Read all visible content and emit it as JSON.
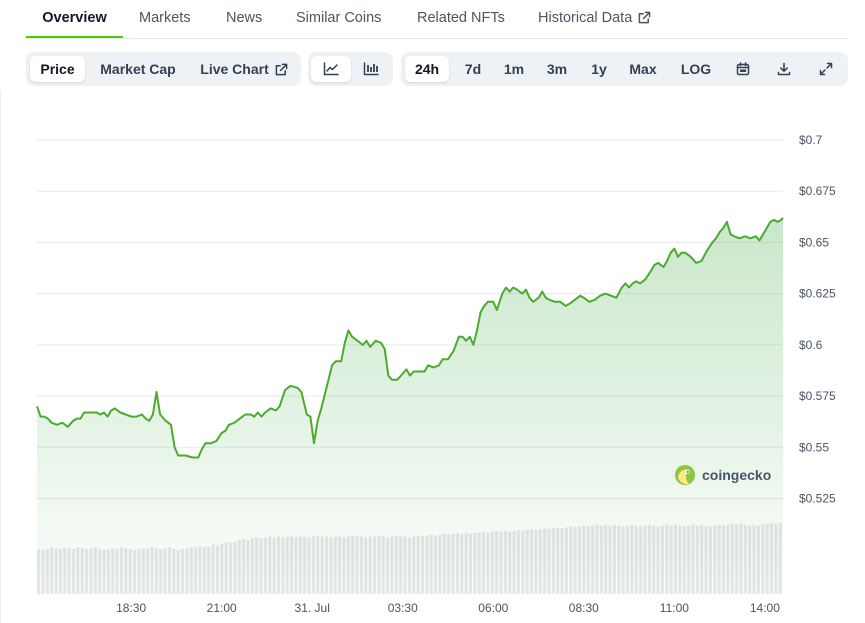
{
  "tabs": [
    {
      "label": "Overview",
      "active": true
    },
    {
      "label": "Markets",
      "active": false
    },
    {
      "label": "News",
      "active": false
    },
    {
      "label": "Similar Coins",
      "active": false
    },
    {
      "label": "Related NFTs",
      "active": false
    },
    {
      "label": "Historical Data",
      "active": false,
      "external": true
    }
  ],
  "toolbar": {
    "price_label": "Price",
    "market_cap_label": "Market Cap",
    "live_chart_label": "Live Chart",
    "chart_types": [
      {
        "icon": "line-chart-icon",
        "selected": true
      },
      {
        "icon": "candlestick-icon",
        "selected": false
      }
    ],
    "ranges": [
      "24h",
      "7d",
      "1m",
      "3m",
      "1y",
      "Max"
    ],
    "selected_range": "24h",
    "log_label": "LOG",
    "icons": [
      "calendar-icon",
      "download-icon",
      "expand-icon"
    ]
  },
  "watermark": {
    "text": "coingecko"
  },
  "colors": {
    "accent": "#4bcc00",
    "line": "#4bab2f",
    "area": "#4caf50",
    "volume": "#e5e7eb",
    "grid": "#e8eaed"
  },
  "chart_data": {
    "type": "area",
    "title": "",
    "xlabel": "",
    "ylabel": "",
    "y_tick_labels": [
      "$0.7",
      "$0.675",
      "$0.65",
      "$0.625",
      "$0.6",
      "$0.575",
      "$0.55",
      "$0.525"
    ],
    "y_ticks": [
      0.7,
      0.675,
      0.65,
      0.625,
      0.6,
      0.575,
      0.55,
      0.525
    ],
    "ylim": [
      0.525,
      0.7
    ],
    "x_tick_labels": [
      "18:30",
      "21:00",
      "31. Jul",
      "03:30",
      "06:00",
      "08:30",
      "11:00",
      "14:00"
    ],
    "x_tick_hours": [
      2.5,
      5,
      7.5,
      10,
      12.5,
      15,
      17.5,
      20
    ],
    "x_unit": "hours after 16:00, 30 Jul",
    "x_range": [
      -0.1,
      20.5
    ],
    "grid": true,
    "series": [
      {
        "points": [
          [
            -0.1,
            0.57
          ],
          [
            0.0,
            0.565
          ],
          [
            0.1,
            0.565
          ],
          [
            0.2,
            0.564
          ],
          [
            0.3,
            0.562
          ],
          [
            0.45,
            0.561
          ],
          [
            0.6,
            0.562
          ],
          [
            0.75,
            0.56
          ],
          [
            0.9,
            0.563
          ],
          [
            1.0,
            0.564
          ],
          [
            1.1,
            0.564
          ],
          [
            1.2,
            0.567
          ],
          [
            1.35,
            0.567
          ],
          [
            1.55,
            0.567
          ],
          [
            1.65,
            0.566
          ],
          [
            1.75,
            0.567
          ],
          [
            1.85,
            0.565
          ],
          [
            1.95,
            0.568
          ],
          [
            2.05,
            0.569
          ],
          [
            2.2,
            0.567
          ],
          [
            2.35,
            0.566
          ],
          [
            2.5,
            0.565
          ],
          [
            2.65,
            0.565
          ],
          [
            2.8,
            0.566
          ],
          [
            2.9,
            0.564
          ],
          [
            3.0,
            0.563
          ],
          [
            3.1,
            0.566
          ],
          [
            3.2,
            0.577
          ],
          [
            3.3,
            0.566
          ],
          [
            3.45,
            0.563
          ],
          [
            3.6,
            0.561
          ],
          [
            3.7,
            0.55
          ],
          [
            3.8,
            0.546
          ],
          [
            4.0,
            0.546
          ],
          [
            4.2,
            0.545
          ],
          [
            4.35,
            0.545
          ],
          [
            4.45,
            0.549
          ],
          [
            4.55,
            0.552
          ],
          [
            4.7,
            0.552
          ],
          [
            4.85,
            0.553
          ],
          [
            5.0,
            0.557
          ],
          [
            5.1,
            0.558
          ],
          [
            5.2,
            0.561
          ],
          [
            5.35,
            0.562
          ],
          [
            5.5,
            0.564
          ],
          [
            5.65,
            0.566
          ],
          [
            5.8,
            0.566
          ],
          [
            5.9,
            0.565
          ],
          [
            6.0,
            0.567
          ],
          [
            6.1,
            0.565
          ],
          [
            6.2,
            0.567
          ],
          [
            6.35,
            0.569
          ],
          [
            6.5,
            0.568
          ],
          [
            6.6,
            0.57
          ],
          [
            6.75,
            0.578
          ],
          [
            6.9,
            0.58
          ],
          [
            7.1,
            0.579
          ],
          [
            7.2,
            0.577
          ],
          [
            7.35,
            0.566
          ],
          [
            7.45,
            0.565
          ],
          [
            7.55,
            0.552
          ],
          [
            7.65,
            0.563
          ],
          [
            7.75,
            0.569
          ],
          [
            7.85,
            0.576
          ],
          [
            7.95,
            0.583
          ],
          [
            8.05,
            0.59
          ],
          [
            8.15,
            0.592
          ],
          [
            8.3,
            0.592
          ],
          [
            8.4,
            0.601
          ],
          [
            8.5,
            0.607
          ],
          [
            8.6,
            0.604
          ],
          [
            8.75,
            0.602
          ],
          [
            8.9,
            0.6
          ],
          [
            9.0,
            0.602
          ],
          [
            9.1,
            0.599
          ],
          [
            9.25,
            0.602
          ],
          [
            9.4,
            0.601
          ],
          [
            9.5,
            0.598
          ],
          [
            9.6,
            0.585
          ],
          [
            9.7,
            0.583
          ],
          [
            9.85,
            0.583
          ],
          [
            10.0,
            0.586
          ],
          [
            10.1,
            0.588
          ],
          [
            10.2,
            0.585
          ],
          [
            10.3,
            0.587
          ],
          [
            10.45,
            0.587
          ],
          [
            10.6,
            0.587
          ],
          [
            10.7,
            0.59
          ],
          [
            10.85,
            0.589
          ],
          [
            11.0,
            0.59
          ],
          [
            11.1,
            0.593
          ],
          [
            11.25,
            0.593
          ],
          [
            11.4,
            0.597
          ],
          [
            11.55,
            0.604
          ],
          [
            11.65,
            0.604
          ],
          [
            11.75,
            0.602
          ],
          [
            11.85,
            0.604
          ],
          [
            11.95,
            0.6
          ],
          [
            12.05,
            0.607
          ],
          [
            12.15,
            0.616
          ],
          [
            12.25,
            0.619
          ],
          [
            12.35,
            0.621
          ],
          [
            12.5,
            0.621
          ],
          [
            12.6,
            0.617
          ],
          [
            12.75,
            0.625
          ],
          [
            12.85,
            0.628
          ],
          [
            12.95,
            0.626
          ],
          [
            13.05,
            0.628
          ],
          [
            13.15,
            0.627
          ],
          [
            13.3,
            0.625
          ],
          [
            13.4,
            0.627
          ],
          [
            13.5,
            0.623
          ],
          [
            13.6,
            0.621
          ],
          [
            13.75,
            0.623
          ],
          [
            13.85,
            0.626
          ],
          [
            13.95,
            0.623
          ],
          [
            14.05,
            0.622
          ],
          [
            14.2,
            0.621
          ],
          [
            14.35,
            0.621
          ],
          [
            14.5,
            0.619
          ],
          [
            14.6,
            0.62
          ],
          [
            14.75,
            0.622
          ],
          [
            14.9,
            0.624
          ],
          [
            15.0,
            0.623
          ],
          [
            15.15,
            0.621
          ],
          [
            15.3,
            0.622
          ],
          [
            15.45,
            0.624
          ],
          [
            15.6,
            0.625
          ],
          [
            15.75,
            0.624
          ],
          [
            15.9,
            0.623
          ],
          [
            16.05,
            0.628
          ],
          [
            16.15,
            0.63
          ],
          [
            16.25,
            0.628
          ],
          [
            16.35,
            0.63
          ],
          [
            16.45,
            0.631
          ],
          [
            16.55,
            0.63
          ],
          [
            16.7,
            0.632
          ],
          [
            16.85,
            0.636
          ],
          [
            16.95,
            0.639
          ],
          [
            17.05,
            0.64
          ],
          [
            17.2,
            0.638
          ],
          [
            17.3,
            0.641
          ],
          [
            17.4,
            0.645
          ],
          [
            17.5,
            0.647
          ],
          [
            17.6,
            0.643
          ],
          [
            17.7,
            0.645
          ],
          [
            17.8,
            0.645
          ],
          [
            17.95,
            0.643
          ],
          [
            18.1,
            0.64
          ],
          [
            18.25,
            0.641
          ],
          [
            18.4,
            0.646
          ],
          [
            18.55,
            0.65
          ],
          [
            18.65,
            0.652
          ],
          [
            18.75,
            0.655
          ],
          [
            18.85,
            0.657
          ],
          [
            18.95,
            0.66
          ],
          [
            19.05,
            0.654
          ],
          [
            19.15,
            0.653
          ],
          [
            19.3,
            0.652
          ],
          [
            19.45,
            0.653
          ],
          [
            19.6,
            0.652
          ],
          [
            19.75,
            0.653
          ],
          [
            19.85,
            0.651
          ],
          [
            19.95,
            0.654
          ],
          [
            20.05,
            0.657
          ],
          [
            20.15,
            0.66
          ],
          [
            20.25,
            0.661
          ],
          [
            20.35,
            0.66
          ],
          [
            20.45,
            0.661
          ],
          [
            20.5,
            0.662
          ]
        ],
        "points_note": "x = hours after 16:00, 30 Jul; y = price in USD"
      }
    ],
    "volume": {
      "x_range": [
        -0.1,
        20.5
      ],
      "values": [
        0.5,
        0.49,
        0.5,
        0.52,
        0.51,
        0.5,
        0.51,
        0.51,
        0.5,
        0.52,
        0.51,
        0.5,
        0.51,
        0.52,
        0.5,
        0.49,
        0.5,
        0.51,
        0.5,
        0.52,
        0.51,
        0.5,
        0.49,
        0.5,
        0.51,
        0.5,
        0.52,
        0.51,
        0.5,
        0.51,
        0.52,
        0.5,
        0.49,
        0.5,
        0.51,
        0.52,
        0.52,
        0.53,
        0.52,
        0.53,
        0.55,
        0.54,
        0.56,
        0.58,
        0.57,
        0.58,
        0.6,
        0.61,
        0.6,
        0.62,
        0.63,
        0.62,
        0.63,
        0.64,
        0.63,
        0.64,
        0.63,
        0.64,
        0.64,
        0.63,
        0.64,
        0.64,
        0.63,
        0.64,
        0.65,
        0.64,
        0.64,
        0.63,
        0.64,
        0.64,
        0.63,
        0.64,
        0.65,
        0.64,
        0.64,
        0.63,
        0.64,
        0.64,
        0.65,
        0.64,
        0.63,
        0.64,
        0.65,
        0.64,
        0.64,
        0.63,
        0.64,
        0.65,
        0.64,
        0.65,
        0.66,
        0.65,
        0.66,
        0.67,
        0.66,
        0.67,
        0.68,
        0.67,
        0.68,
        0.67,
        0.68,
        0.68,
        0.69,
        0.68,
        0.69,
        0.7,
        0.69,
        0.7,
        0.69,
        0.7,
        0.71,
        0.7,
        0.71,
        0.72,
        0.71,
        0.72,
        0.73,
        0.72,
        0.73,
        0.74,
        0.73,
        0.74,
        0.75,
        0.74,
        0.75,
        0.76,
        0.75,
        0.76,
        0.77,
        0.76,
        0.77,
        0.76,
        0.77,
        0.76,
        0.75,
        0.76,
        0.77,
        0.76,
        0.75,
        0.76,
        0.77,
        0.76,
        0.75,
        0.76,
        0.77,
        0.76,
        0.77,
        0.76,
        0.75,
        0.76,
        0.77,
        0.76,
        0.77,
        0.76,
        0.75,
        0.76,
        0.77,
        0.76,
        0.77,
        0.78,
        0.77,
        0.78,
        0.77,
        0.76,
        0.77,
        0.76,
        0.77,
        0.78,
        0.79,
        0.78,
        0.79
      ]
    }
  }
}
